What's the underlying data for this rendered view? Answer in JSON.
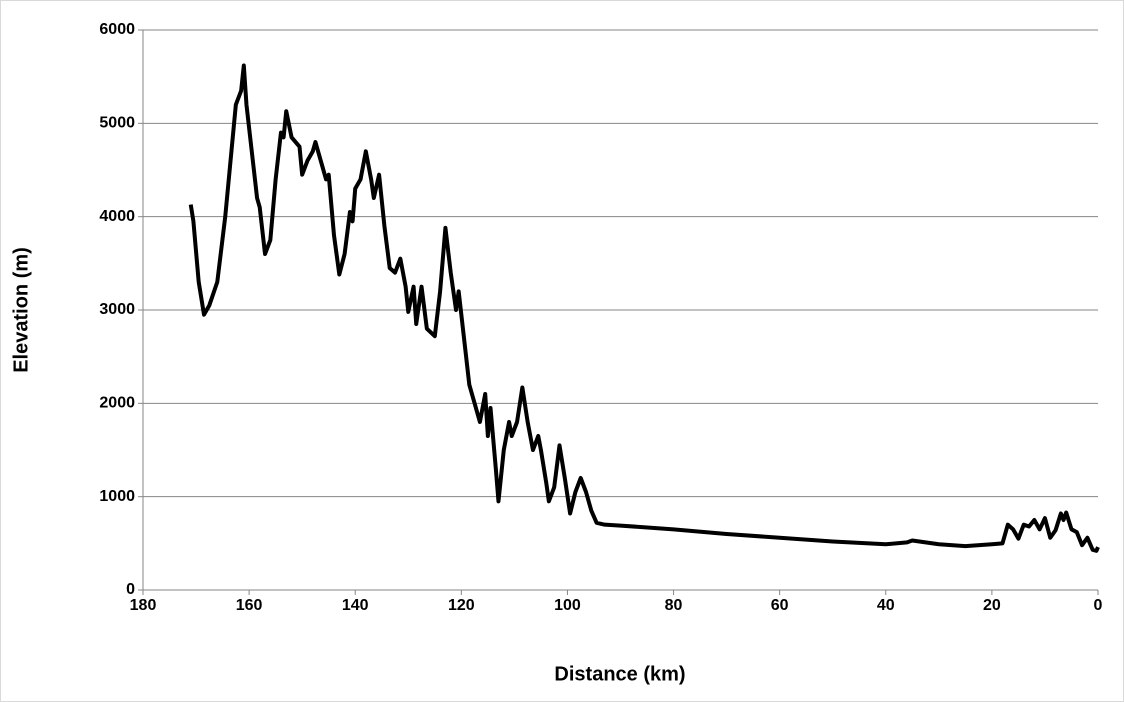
{
  "chart_data": {
    "type": "line",
    "x_label": "Distance (km)",
    "y_label": "Elevation (m)",
    "color": "#000000",
    "grid": true,
    "xlim": [
      180,
      0
    ],
    "xticks": [
      180,
      160,
      140,
      120,
      100,
      80,
      60,
      40,
      20,
      0
    ],
    "ylim": [
      0,
      6000
    ],
    "yticks": [
      0,
      1000,
      2000,
      3000,
      4000,
      5000,
      6000
    ],
    "x": [
      171,
      170.5,
      169.5,
      168.5,
      167.5,
      166,
      164.5,
      163.5,
      162.5,
      161.5,
      161,
      160.5,
      159.5,
      158.5,
      158,
      157,
      156,
      155,
      154,
      153.5,
      153,
      152,
      150.5,
      150,
      149,
      148,
      147.5,
      146.5,
      145.5,
      145,
      144,
      143,
      142,
      141,
      140.5,
      140,
      139,
      138,
      137,
      136.5,
      135.5,
      134.5,
      133.5,
      132.5,
      131.5,
      130.5,
      130,
      129,
      128.5,
      127.5,
      126.5,
      125,
      124,
      123,
      122,
      121,
      120.5,
      119.5,
      118.5,
      117.5,
      116.5,
      115.5,
      115,
      114.5,
      113.5,
      113,
      112,
      111,
      110.5,
      109.5,
      108.5,
      107.5,
      106.5,
      105.5,
      105,
      104,
      103.5,
      102.5,
      101.5,
      100.5,
      99.5,
      98.5,
      97.5,
      96.5,
      95.5,
      94.5,
      93,
      90,
      80,
      70,
      60,
      50,
      40,
      36,
      35,
      30,
      25,
      20,
      18,
      17,
      16,
      15,
      14,
      13,
      12,
      11,
      10,
      9,
      8,
      7,
      6.5,
      6,
      5,
      4,
      3,
      2,
      1,
      0.3,
      0
    ],
    "values": [
      4130,
      3950,
      3300,
      2950,
      3050,
      3300,
      4000,
      4600,
      5200,
      5350,
      5620,
      5200,
      4700,
      4200,
      4100,
      3600,
      3750,
      4400,
      4900,
      4850,
      5130,
      4850,
      4750,
      4450,
      4600,
      4700,
      4800,
      4600,
      4400,
      4450,
      3800,
      3380,
      3600,
      4050,
      3950,
      4300,
      4400,
      4700,
      4400,
      4200,
      4450,
      3900,
      3450,
      3400,
      3550,
      3250,
      2980,
      3250,
      2850,
      3250,
      2800,
      2720,
      3200,
      3880,
      3400,
      3000,
      3200,
      2700,
      2200,
      2000,
      1800,
      2100,
      1650,
      1950,
      1300,
      950,
      1500,
      1800,
      1650,
      1800,
      2170,
      1800,
      1500,
      1650,
      1500,
      1150,
      950,
      1100,
      1550,
      1200,
      820,
      1050,
      1200,
      1050,
      850,
      720,
      700,
      690,
      650,
      600,
      560,
      520,
      490,
      510,
      530,
      490,
      470,
      490,
      500,
      700,
      650,
      550,
      700,
      680,
      750,
      650,
      770,
      560,
      640,
      820,
      750,
      830,
      650,
      620,
      480,
      560,
      430,
      420,
      460
    ]
  }
}
